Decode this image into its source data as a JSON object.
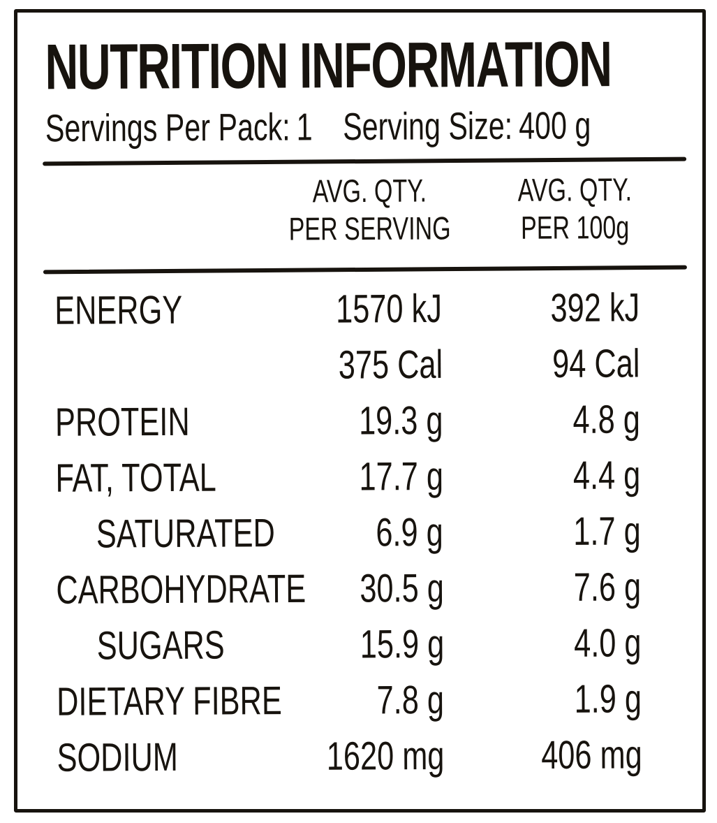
{
  "label": {
    "title": "NUTRITION INFORMATION",
    "servings": {
      "per_pack_label": "Servings Per Pack:",
      "per_pack_value": "1",
      "size_label": "Serving Size:",
      "size_value": "400 g"
    },
    "columns": {
      "per_serving_line1": "AVG. QTY.",
      "per_serving_line2": "PER SERVING",
      "per_100g_line1": "AVG. QTY.",
      "per_100g_line2": "PER 100g"
    },
    "rows": [
      {
        "name": "ENERGY",
        "per_serving": "1570 kJ",
        "per_100g": "392 kJ",
        "indent": false
      },
      {
        "name": "",
        "per_serving": "375 Cal",
        "per_100g": "94 Cal",
        "indent": false
      },
      {
        "name": "PROTEIN",
        "per_serving": "19.3 g",
        "per_100g": "4.8 g",
        "indent": false
      },
      {
        "name": "FAT, TOTAL",
        "per_serving": "17.7 g",
        "per_100g": "4.4 g",
        "indent": false
      },
      {
        "name": "SATURATED",
        "per_serving": "6.9 g",
        "per_100g": "1.7 g",
        "indent": true
      },
      {
        "name": "CARBOHYDRATE",
        "per_serving": "30.5 g",
        "per_100g": "7.6 g",
        "indent": false
      },
      {
        "name": "SUGARS",
        "per_serving": "15.9 g",
        "per_100g": "4.0 g",
        "indent": true
      },
      {
        "name": "DIETARY FIBRE",
        "per_serving": "7.8 g",
        "per_100g": "1.9 g",
        "indent": false
      },
      {
        "name": "SODIUM",
        "per_serving": "1620 mg",
        "per_100g": "406 mg",
        "indent": false
      }
    ]
  },
  "colors": {
    "ink": "#17130e",
    "paper": "#ffffff"
  }
}
